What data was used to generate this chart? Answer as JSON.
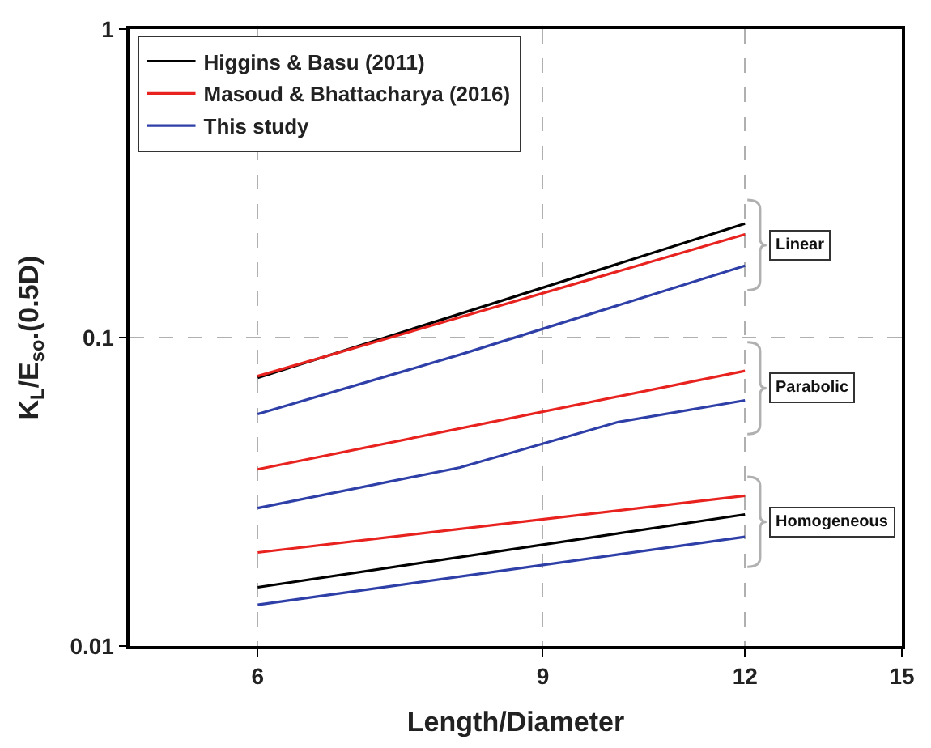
{
  "chart_data": {
    "type": "line",
    "xlabel": "Length/Diameter",
    "ylabel": "K$_{L}$/E$_{so}$.(0.5D)",
    "log": "xy",
    "xlim": [
      5,
      15
    ],
    "xticks": [
      6,
      9,
      12,
      15
    ],
    "ylim": [
      0.01,
      1
    ],
    "yticks": [
      0.01,
      0.1,
      1
    ],
    "grid": true,
    "legend": "top left",
    "line_style": "solid",
    "marker": "none",
    "annotations": [
      "Linear",
      "Parabolic",
      "Homogeneous"
    ],
    "series": [
      {
        "name": "Higgins & Basu (2011)",
        "color": "#000000",
        "x": [
          6,
          12
        ],
        "values": [
          0.074,
          0.234
        ]
      },
      {
        "name": "Masoud & Bhattacharya (2016)",
        "color": "#e8231f",
        "x": [
          6,
          12
        ],
        "values": [
          0.075,
          0.216
        ]
      },
      {
        "name": "This study",
        "color": "#2e3fa8",
        "x": [
          6,
          8,
          12
        ],
        "values": [
          0.0565,
          0.088,
          0.171
        ]
      },
      {
        "color": "#e8231f",
        "x": [
          6,
          12
        ],
        "values": [
          0.0374,
          0.078
        ]
      },
      {
        "color": "#2e3fa8",
        "x": [
          6,
          8,
          10,
          12
        ],
        "values": [
          0.028,
          0.0379,
          0.0531,
          0.0626
        ]
      },
      {
        "color": "#e8231f",
        "x": [
          6,
          12
        ],
        "values": [
          0.0201,
          0.0307
        ]
      },
      {
        "color": "#000000",
        "x": [
          6,
          12
        ],
        "values": [
          0.0155,
          0.0267
        ]
      },
      {
        "color": "#2e3fa8",
        "x": [
          6,
          12
        ],
        "values": [
          0.0136,
          0.0226
        ]
      }
    ]
  }
}
